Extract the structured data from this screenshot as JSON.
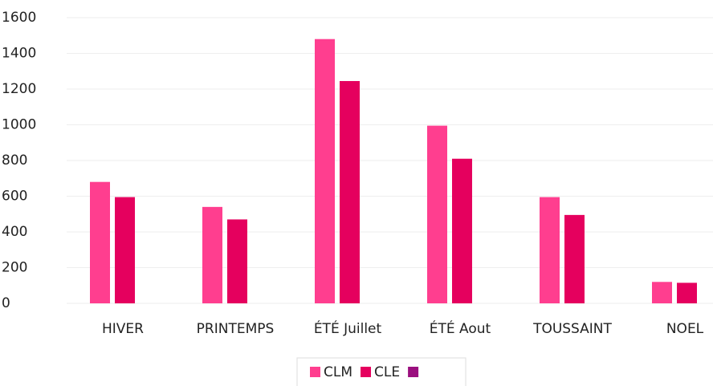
{
  "chart_data": {
    "type": "bar",
    "categories": [
      "HIVER",
      "PRINTEMPS",
      "ÉTÉ Juillet",
      "ÉTÉ Aout",
      "TOUSSAINT",
      "NOEL"
    ],
    "series": [
      {
        "name": "CLM",
        "color": "#ff3e8f",
        "values": [
          680,
          540,
          1480,
          995,
          595,
          120
        ]
      },
      {
        "name": "CLE",
        "color": "#e5005e",
        "values": [
          595,
          470,
          1245,
          810,
          495,
          115
        ]
      },
      {
        "color": "#9b0f7f",
        "values": [
          null,
          null,
          null,
          null,
          null,
          null
        ]
      }
    ],
    "ylim": [
      0,
      1600
    ],
    "yticks": [
      0,
      200,
      400,
      600,
      800,
      1000,
      1200,
      1400,
      1600
    ],
    "grid": true
  }
}
